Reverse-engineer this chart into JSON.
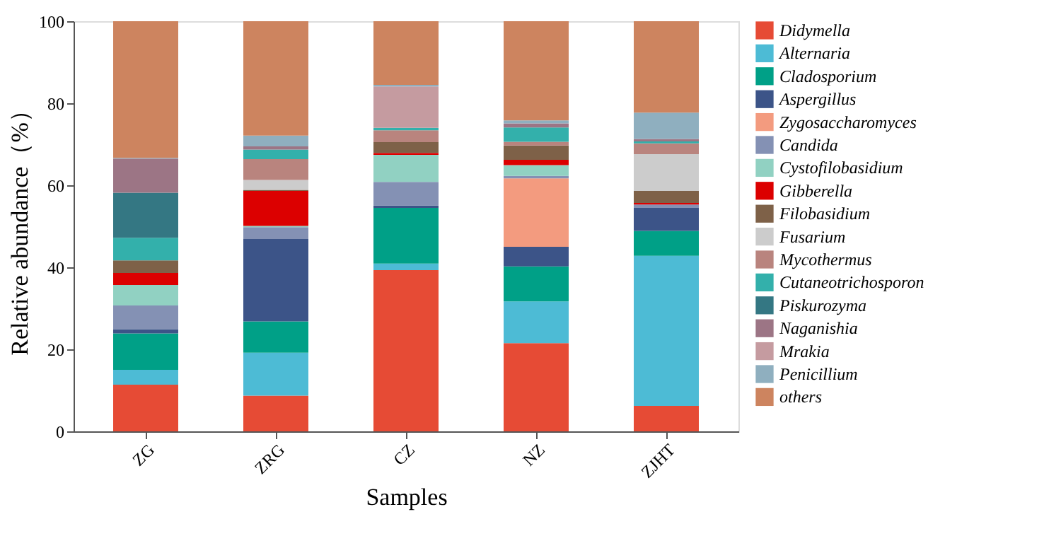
{
  "chart_data": {
    "type": "bar",
    "stacked": true,
    "xlabel": "Samples",
    "ylabel": "Relative abundance（%）",
    "categories": [
      "ZG",
      "ZRG",
      "CZ",
      "NZ",
      "ZJHT"
    ],
    "ylim": [
      0,
      100
    ],
    "yticks": [
      0,
      20,
      40,
      60,
      80,
      100
    ],
    "grid": false,
    "legend": "right",
    "series": [
      {
        "name": "Didymella",
        "color": "#e64b35",
        "values": [
          11.4,
          8.7,
          39.3,
          21.5,
          6.2
        ]
      },
      {
        "name": "Alternaria",
        "color": "#4dbbd5",
        "values": [
          3.6,
          10.5,
          1.6,
          10.2,
          36.6
        ]
      },
      {
        "name": "Cladosporium",
        "color": "#00a087",
        "values": [
          8.9,
          7.6,
          13.6,
          8.5,
          6.1
        ]
      },
      {
        "name": "Aspergillus",
        "color": "#3c5488",
        "values": [
          1.0,
          20.1,
          0.6,
          4.8,
          5.6
        ]
      },
      {
        "name": "Zygosaccharomyces",
        "color": "#f39b7f",
        "values": [
          0,
          0,
          0,
          16.7,
          0
        ]
      },
      {
        "name": "Candida",
        "color": "#8491b4",
        "values": [
          5.8,
          2.9,
          5.7,
          0.6,
          0.8
        ]
      },
      {
        "name": "Cystofilobasidium",
        "color": "#91d1c2",
        "values": [
          5.0,
          0.3,
          6.6,
          2.6,
          0
        ]
      },
      {
        "name": "Gibberella",
        "color": "#dc0000",
        "values": [
          2.9,
          8.5,
          0.5,
          1.3,
          0.4
        ]
      },
      {
        "name": "Filobasidium",
        "color": "#7e6148",
        "values": [
          3.1,
          0.3,
          2.6,
          3.5,
          2.9
        ]
      },
      {
        "name": "Fusarium",
        "color": "#cccccc",
        "values": [
          0,
          2.4,
          0,
          0,
          9.0
        ]
      },
      {
        "name": "Mycothermus",
        "color": "#b9847e",
        "values": [
          0,
          5.1,
          2.9,
          0.9,
          2.6
        ]
      },
      {
        "name": "Cutaneotrichosporon",
        "color": "#33b0ab",
        "values": [
          5.5,
          2.3,
          0.6,
          3.5,
          0.5
        ]
      },
      {
        "name": "Piskurozyma",
        "color": "#347783",
        "values": [
          11.0,
          0,
          0,
          0,
          0
        ]
      },
      {
        "name": "Naganishia",
        "color": "#9c7585",
        "values": [
          8.3,
          0.8,
          0,
          1.0,
          0.6
        ]
      },
      {
        "name": "Mrakia",
        "color": "#c59ba0",
        "values": [
          0,
          0,
          10.1,
          0,
          0
        ]
      },
      {
        "name": "Penicillium",
        "color": "#8fafbf",
        "values": [
          0.2,
          2.6,
          0.4,
          0.7,
          6.4
        ]
      },
      {
        "name": "others",
        "color": "#cd845f",
        "values": [
          33.3,
          27.9,
          15.5,
          24.2,
          22.3
        ]
      }
    ]
  }
}
